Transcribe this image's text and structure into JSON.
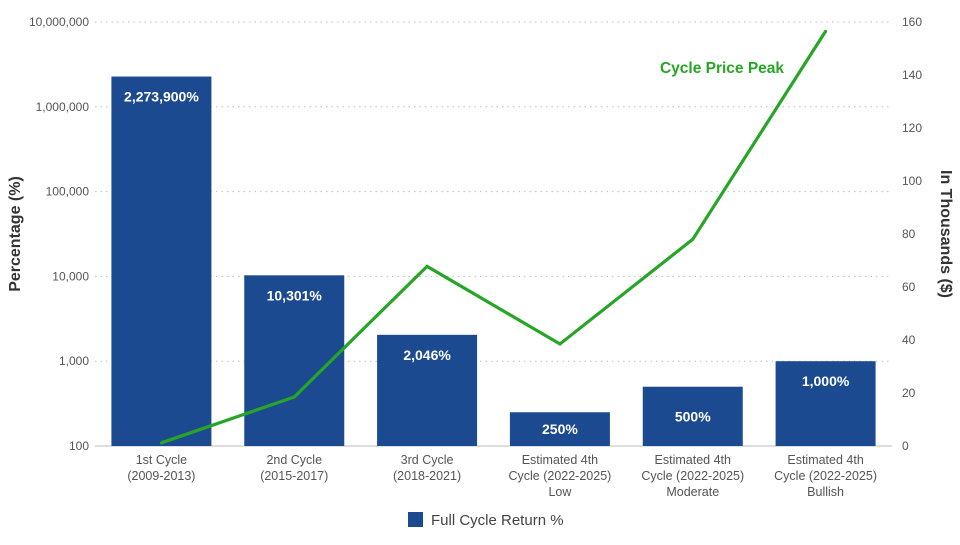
{
  "chart_data": {
    "type": "bar",
    "categories": [
      [
        "1st Cycle",
        "(2009-2013)"
      ],
      [
        "2nd Cycle",
        "(2015-2017)"
      ],
      [
        "3rd Cycle",
        "(2018-2021)"
      ],
      [
        "Estimated 4th",
        "Cycle (2022-2025)",
        "Low"
      ],
      [
        "Estimated 4th",
        "Cycle (2022-2025)",
        "Moderate"
      ],
      [
        "Estimated 4th",
        "Cycle (2022-2025)",
        "Bullish"
      ]
    ],
    "series": [
      {
        "name": "Full Cycle Return %",
        "type": "bar",
        "axis": "left",
        "color": "#1c4a91",
        "values": [
          2273900,
          10301,
          2046,
          250,
          500,
          1000
        ],
        "value_labels": [
          "2,273,900%",
          "10,301%",
          "2,046%",
          "250%",
          "500%",
          "1,000%"
        ]
      },
      {
        "name": "Cycle Price Peak",
        "type": "line",
        "axis": "right",
        "color": "#27a527",
        "values": [
          1.2,
          18.5,
          67.8,
          38.5,
          78,
          156.5
        ]
      }
    ],
    "ylabel": "Percentage (%)",
    "ylabel_right": "In Thousands ($)",
    "y_scale": "log",
    "ylim": [
      100,
      10000000
    ],
    "yticks": [
      100,
      1000,
      10000,
      100000,
      1000000,
      10000000
    ],
    "ytick_labels": [
      "100",
      "1,000",
      "10,000",
      "100,000",
      "1,000,000",
      "10,000,000"
    ],
    "ylim_right": [
      0,
      160
    ],
    "yticks_right": [
      "0",
      "20",
      "40",
      "60",
      "80",
      "100",
      "120",
      "140",
      "160"
    ],
    "grid": true,
    "legend": {
      "position": "bottom-center",
      "entries": [
        "Full Cycle Return %"
      ]
    }
  }
}
